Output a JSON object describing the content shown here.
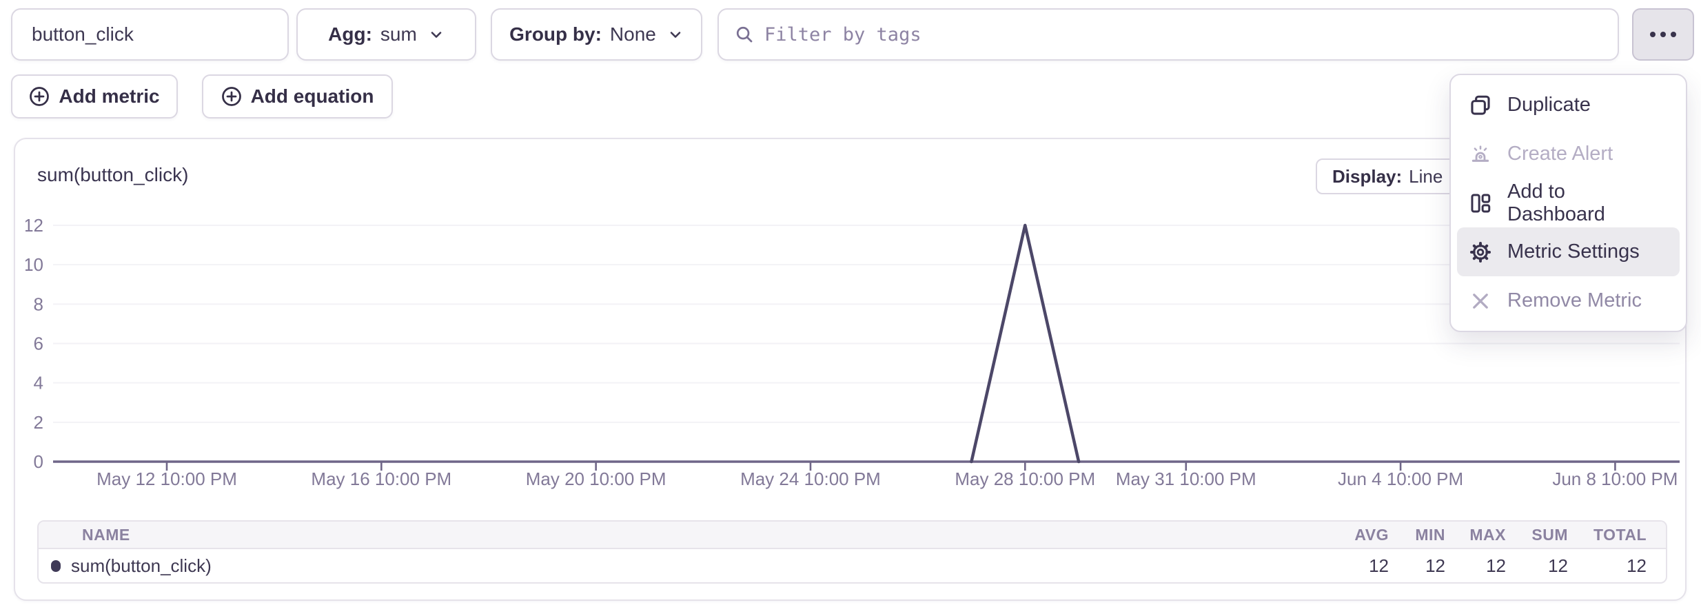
{
  "toolbar": {
    "metric_name": "button_click",
    "agg": {
      "label": "Agg:",
      "value": "sum"
    },
    "group_by": {
      "label": "Group by:",
      "value": "None"
    },
    "filter_placeholder": "Filter by tags",
    "add_metric_label": "Add metric",
    "add_equation_label": "Add equation"
  },
  "menu": {
    "items": [
      {
        "label": "Duplicate",
        "icon": "duplicate-icon",
        "state": "normal"
      },
      {
        "label": "Create Alert",
        "icon": "alert-icon",
        "state": "disabled"
      },
      {
        "label": "Add to Dashboard",
        "icon": "dashboard-icon",
        "state": "normal"
      },
      {
        "label": "Metric Settings",
        "icon": "gear-icon",
        "state": "highlighted"
      },
      {
        "label": "Remove Metric",
        "icon": "close-icon",
        "state": "muted"
      }
    ]
  },
  "chart_panel": {
    "title": "sum(button_click)",
    "display_label": "Display:",
    "display_value": "Line"
  },
  "chart_data": {
    "type": "line",
    "title": "sum(button_click)",
    "ylim": [
      0,
      12
    ],
    "y_ticks": [
      0,
      2,
      4,
      6,
      8,
      10,
      12
    ],
    "grid": true,
    "x_ticks": [
      {
        "day": 0,
        "label": "May 12 10:00 PM"
      },
      {
        "day": 4,
        "label": "May 16 10:00 PM"
      },
      {
        "day": 8,
        "label": "May 20 10:00 PM"
      },
      {
        "day": 12,
        "label": "May 24 10:00 PM"
      },
      {
        "day": 16,
        "label": "May 28 10:00 PM"
      },
      {
        "day": 19,
        "label": "May 31 10:00 PM"
      },
      {
        "day": 23,
        "label": "Jun 4 10:00 PM"
      },
      {
        "day": 27,
        "label": "Jun 8 10:00 PM"
      }
    ],
    "series": [
      {
        "name": "sum(button_click)",
        "color": "#4c4768",
        "points": [
          {
            "day": 15,
            "value": 0
          },
          {
            "day": 16,
            "value": 12
          },
          {
            "day": 17,
            "value": 0
          }
        ]
      }
    ],
    "axis_color": "#6f6688",
    "grid_color": "#f3f2f6",
    "tick_label_color": "#827998"
  },
  "summary_table": {
    "columns": [
      "NAME",
      "AVG",
      "MIN",
      "MAX",
      "SUM",
      "TOTAL"
    ],
    "rows": [
      {
        "name": "sum(button_click)",
        "avg": "12",
        "min": "12",
        "max": "12",
        "sum": "12",
        "total": "12",
        "dot_color": "#3f3a57"
      }
    ]
  },
  "colors": {
    "text": "#3e3852",
    "muted_text": "#8b82a0",
    "border": "#dbd7e2",
    "menu_hover_bg": "#ebeaee",
    "disabled_text": "#b4adc4"
  }
}
